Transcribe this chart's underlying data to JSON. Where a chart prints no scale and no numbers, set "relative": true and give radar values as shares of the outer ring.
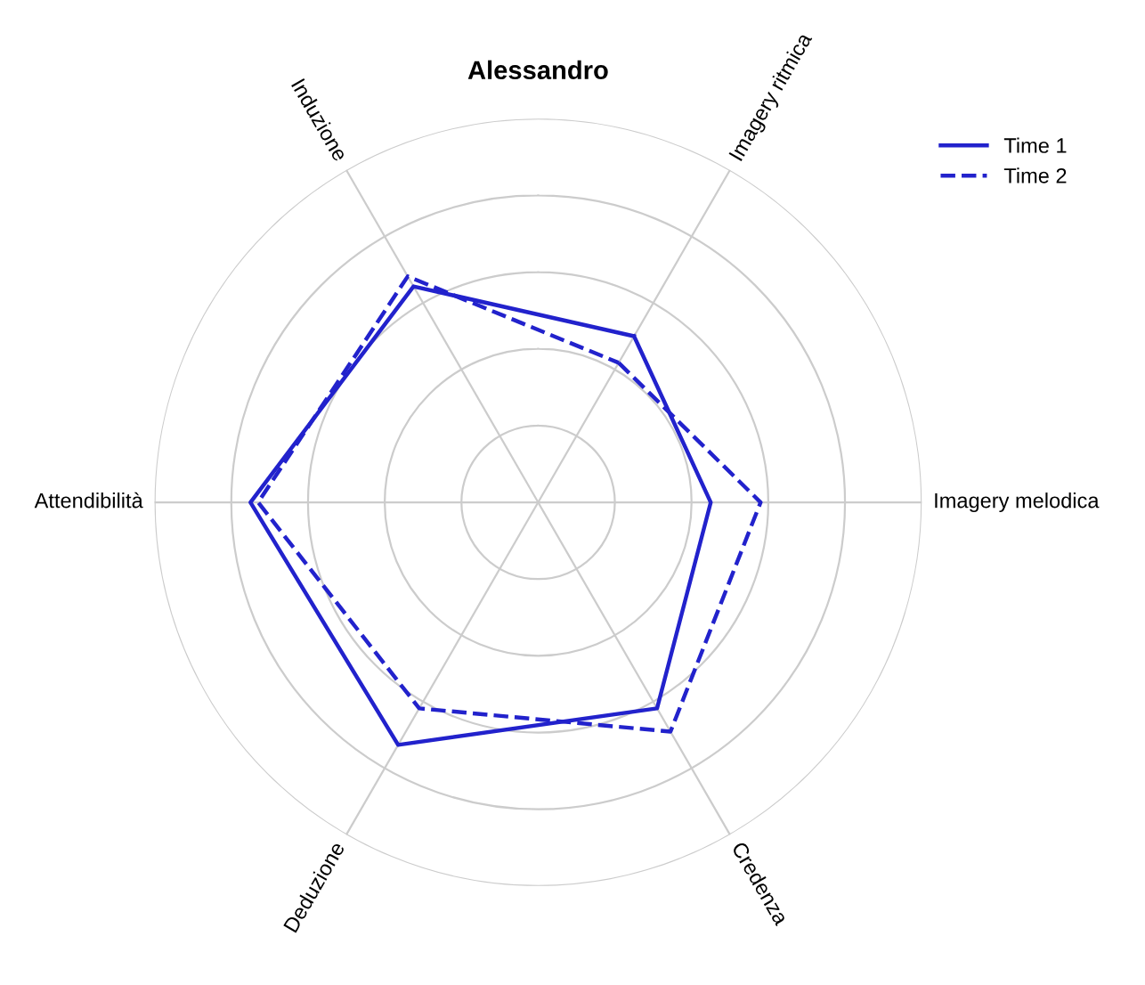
{
  "chart_data": {
    "type": "radar",
    "title": "Alessandro",
    "relative": true,
    "categories": [
      "Imagery ritmica",
      "Imagery melodica",
      "Credenza",
      "Deduzione",
      "Attendibilità",
      "Induzione"
    ],
    "series": [
      {
        "name": "Time 1",
        "color": "#2222cc",
        "line_style": "solid",
        "values": [
          0.5,
          0.45,
          0.62,
          0.73,
          0.75,
          0.65
        ]
      },
      {
        "name": "Time 2",
        "color": "#2222cc",
        "line_style": "dashed",
        "values": [
          0.42,
          0.58,
          0.69,
          0.62,
          0.73,
          0.68
        ]
      }
    ],
    "grid": true,
    "legend": "top right",
    "marker": "none"
  }
}
